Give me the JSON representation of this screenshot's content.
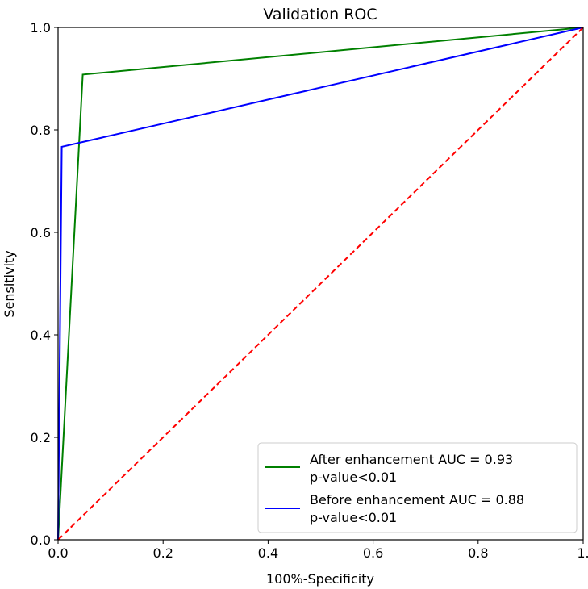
{
  "chart_data": {
    "type": "line",
    "title": "Validation ROC",
    "xlabel": "100%-Specificity",
    "ylabel": "Sensitivity",
    "xlim": [
      0,
      1
    ],
    "ylim": [
      0,
      1
    ],
    "x_ticks": [
      0.0,
      0.2,
      0.4,
      0.6,
      0.8,
      1.0
    ],
    "y_ticks": [
      0.0,
      0.2,
      0.4,
      0.6,
      0.8,
      1.0
    ],
    "x_tick_labels": [
      "0.0",
      "0.2",
      "0.4",
      "0.6",
      "0.8",
      "1."
    ],
    "y_tick_labels": [
      "0.0",
      "0.2",
      "0.4",
      "0.6",
      "0.8",
      "1.0"
    ],
    "grid": false,
    "legend_position": "bottom-right",
    "series": [
      {
        "name": "After enhancement AUC = 0.93",
        "note": "p-value<0.01",
        "color": "#008000",
        "style": "solid",
        "x": [
          0.0,
          0.047,
          1.0
        ],
        "y": [
          0.0,
          0.908,
          1.0
        ]
      },
      {
        "name": "Before enhancement AUC = 0.88",
        "note": "p-value<0.01",
        "color": "#0000ff",
        "style": "solid",
        "x": [
          0.0,
          0.007,
          1.0
        ],
        "y": [
          0.0,
          0.767,
          1.0
        ]
      },
      {
        "color": "#ff0000",
        "style": "dashed",
        "x": [
          0.0,
          1.0
        ],
        "y": [
          0.0,
          1.0
        ]
      }
    ]
  }
}
